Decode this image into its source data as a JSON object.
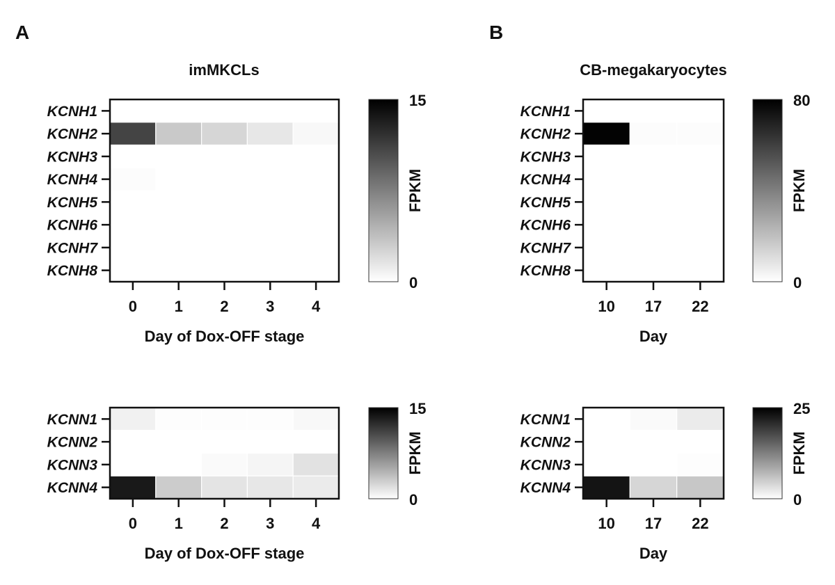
{
  "panel_a": {
    "letter": "A",
    "title": "imMKCLs"
  },
  "panel_b": {
    "letter": "B",
    "title": "CB-megakaryocytes"
  },
  "chart_data": [
    {
      "type": "heatmap",
      "panel": "A",
      "title": "imMKCLs",
      "rows": [
        "KCNH1",
        "KCNH2",
        "KCNH3",
        "KCNH4",
        "KCNH5",
        "KCNH6",
        "KCNH7",
        "KCNH8"
      ],
      "columns": [
        "0",
        "1",
        "2",
        "3",
        "4"
      ],
      "xlabel": "Day of Dox-OFF stage",
      "values": [
        [
          0,
          0,
          0,
          0,
          0
        ],
        [
          11,
          3.2,
          2.4,
          1.4,
          0.4
        ],
        [
          0,
          0,
          0,
          0,
          0
        ],
        [
          0.2,
          0,
          0,
          0,
          0
        ],
        [
          0,
          0,
          0,
          0,
          0
        ],
        [
          0,
          0,
          0,
          0,
          0
        ],
        [
          0,
          0,
          0,
          0,
          0
        ],
        [
          0,
          0,
          0,
          0,
          0
        ]
      ],
      "colorbar": {
        "label": "FPKM",
        "min": 0,
        "max": 15,
        "min_label": "0",
        "max_label": "15"
      }
    },
    {
      "type": "heatmap",
      "panel": "A",
      "rows": [
        "KCNN1",
        "KCNN2",
        "KCNN3",
        "KCNN4"
      ],
      "columns": [
        "0",
        "1",
        "2",
        "3",
        "4"
      ],
      "xlabel": "Day of Dox-OFF stage",
      "values": [
        [
          0.8,
          0.1,
          0.1,
          0.1,
          0.4
        ],
        [
          0,
          0,
          0,
          0,
          0
        ],
        [
          0,
          0,
          0.3,
          0.6,
          1.7
        ],
        [
          13.5,
          3.0,
          1.6,
          1.4,
          1.2
        ]
      ],
      "colorbar": {
        "label": "FPKM",
        "min": 0,
        "max": 15,
        "min_label": "0",
        "max_label": "15"
      }
    },
    {
      "type": "heatmap",
      "panel": "B",
      "title": "CB-megakaryocytes",
      "rows": [
        "KCNH1",
        "KCNH2",
        "KCNH3",
        "KCNH4",
        "KCNH5",
        "KCNH6",
        "KCNH7",
        "KCNH8"
      ],
      "columns": [
        "10",
        "17",
        "22"
      ],
      "xlabel": "Day",
      "values": [
        [
          0,
          0,
          0
        ],
        [
          79,
          0.8,
          0.8
        ],
        [
          0,
          0,
          0
        ],
        [
          0,
          0,
          0
        ],
        [
          0,
          0,
          0
        ],
        [
          0,
          0,
          0
        ],
        [
          0,
          0,
          0
        ],
        [
          0,
          0,
          0
        ]
      ],
      "colorbar": {
        "label": "FPKM",
        "min": 0,
        "max": 80,
        "min_label": "0",
        "max_label": "80"
      }
    },
    {
      "type": "heatmap",
      "panel": "B",
      "rows": [
        "KCNN1",
        "KCNN2",
        "KCNN3",
        "KCNN4"
      ],
      "columns": [
        "10",
        "17",
        "22"
      ],
      "xlabel": "Day",
      "values": [
        [
          0,
          0.5,
          2.0
        ],
        [
          0,
          0,
          0
        ],
        [
          0,
          0,
          0.2
        ],
        [
          23,
          4.0,
          5.5
        ]
      ],
      "colorbar": {
        "label": "FPKM",
        "min": 0,
        "max": 25,
        "min_label": "0",
        "max_label": "25"
      }
    }
  ]
}
